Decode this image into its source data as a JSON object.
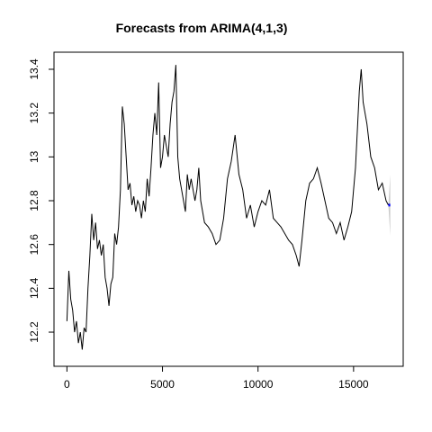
{
  "chart_data": {
    "type": "line",
    "title": "Forecasts from ARIMA(4,1,3)",
    "x": [
      0,
      100,
      200,
      300,
      400,
      500,
      600,
      700,
      800,
      900,
      1000,
      1100,
      1200,
      1300,
      1400,
      1500,
      1600,
      1700,
      1800,
      1900,
      2000,
      2100,
      2200,
      2300,
      2400,
      2500,
      2600,
      2700,
      2800,
      2900,
      3000,
      3100,
      3200,
      3300,
      3400,
      3500,
      3600,
      3700,
      3800,
      3900,
      4000,
      4100,
      4200,
      4300,
      4400,
      4500,
      4600,
      4700,
      4800,
      4900,
      5000,
      5100,
      5200,
      5300,
      5400,
      5500,
      5600,
      5700,
      5800,
      5900,
      6000,
      6100,
      6200,
      6300,
      6400,
      6500,
      6600,
      6700,
      6800,
      6900,
      7000,
      7200,
      7400,
      7600,
      7800,
      8000,
      8200,
      8400,
      8600,
      8800,
      9000,
      9200,
      9400,
      9600,
      9800,
      10000,
      10200,
      10400,
      10600,
      10800,
      11000,
      11200,
      11400,
      11600,
      11800,
      12000,
      12150,
      12300,
      12500,
      12700,
      12900,
      13100,
      13300,
      13500,
      13700,
      13900,
      14100,
      14300,
      14500,
      14700,
      14900,
      15100,
      15300,
      15400,
      15500,
      15700,
      15900,
      16100,
      16300,
      16500,
      16700,
      16820
    ],
    "values": [
      12.25,
      12.48,
      12.35,
      12.3,
      12.2,
      12.25,
      12.15,
      12.2,
      12.12,
      12.22,
      12.2,
      12.4,
      12.55,
      12.74,
      12.62,
      12.7,
      12.58,
      12.62,
      12.55,
      12.6,
      12.45,
      12.4,
      12.32,
      12.42,
      12.45,
      12.65,
      12.6,
      12.68,
      12.85,
      13.23,
      13.15,
      13.0,
      12.85,
      12.88,
      12.78,
      12.82,
      12.75,
      12.8,
      12.78,
      12.72,
      12.8,
      12.75,
      12.9,
      12.82,
      12.95,
      13.1,
      13.2,
      13.1,
      13.34,
      12.95,
      13.0,
      13.1,
      13.05,
      13.0,
      13.15,
      13.25,
      13.3,
      13.42,
      13.0,
      12.9,
      12.85,
      12.8,
      12.75,
      12.92,
      12.85,
      12.9,
      12.85,
      12.8,
      12.85,
      12.95,
      12.8,
      12.7,
      12.68,
      12.65,
      12.6,
      12.62,
      12.72,
      12.9,
      12.98,
      13.1,
      12.92,
      12.85,
      12.72,
      12.78,
      12.68,
      12.75,
      12.8,
      12.78,
      12.85,
      12.72,
      12.7,
      12.68,
      12.65,
      12.62,
      12.6,
      12.55,
      12.5,
      12.62,
      12.8,
      12.88,
      12.9,
      12.95,
      12.88,
      12.8,
      12.72,
      12.7,
      12.65,
      12.7,
      12.62,
      12.68,
      12.75,
      12.95,
      13.3,
      13.4,
      13.25,
      13.15,
      13.0,
      12.95,
      12.85,
      12.88,
      12.8,
      12.78
    ],
    "color": "#000000",
    "forecast": {
      "x": [
        16820,
        16920
      ],
      "values": [
        12.78,
        12.78
      ],
      "lower": [
        12.78,
        12.64
      ],
      "upper": [
        12.78,
        12.92
      ],
      "color": "#0000ff",
      "band_color": "#cccccc"
    },
    "xlim": [
      -677,
      17597
    ],
    "xticks": [
      0,
      5000,
      10000,
      15000
    ],
    "ylim": [
      12.044,
      13.478
    ],
    "yticks": [
      12.2,
      12.4,
      12.6,
      12.8,
      13.0,
      13.2,
      13.4
    ]
  }
}
